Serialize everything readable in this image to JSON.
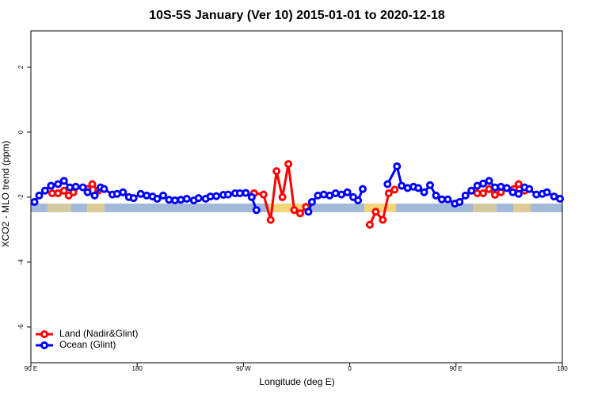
{
  "chart_data": {
    "type": "line",
    "title": "10S-5S January (Ver 10)   2015-01-01 to 2020-12-18",
    "xlabel": "Longitude (deg E)",
    "ylabel": "XCO2 - MLO trend (ppm)",
    "xlim": [
      90,
      540
    ],
    "xticks": [
      {
        "value": 90,
        "label": "90 E"
      },
      180,
      {
        "value": 270,
        "label": "90 W"
      },
      {
        "value": 360,
        "label": "0"
      },
      {
        "value": 450,
        "label": "90 E"
      },
      {
        "value": 540,
        "label": "180"
      }
    ],
    "ylim": [
      -7.1,
      3.12
    ],
    "yticks": [
      2,
      0,
      -2,
      -4,
      -6
    ],
    "legend": "bottom-left",
    "series": [
      {
        "name": "Land (Nadir&Glint)",
        "color": "#ff0000",
        "x": [
          108,
          113,
          118,
          122,
          126,
          null,
          138,
          142,
          147,
          null,
          279,
          287,
          293,
          298,
          303,
          308,
          313,
          318,
          323,
          null,
          377,
          382,
          388,
          393,
          398,
          null,
          468,
          473,
          478,
          483,
          488,
          null,
          499,
          503,
          508
        ],
        "values": [
          -1.88,
          -1.88,
          -1.8,
          -1.95,
          -1.85,
          null,
          -1.75,
          -1.6,
          -1.8,
          null,
          -1.88,
          -1.92,
          -2.7,
          -1.2,
          -2.0,
          -0.98,
          -2.4,
          -2.5,
          -2.3,
          null,
          -2.85,
          -2.45,
          -2.7,
          -1.88,
          -1.77,
          null,
          -1.88,
          -1.88,
          -1.75,
          -1.93,
          -1.85,
          null,
          -1.75,
          -1.6,
          -1.8
        ]
      },
      {
        "name": "Ocean (Glint)",
        "color": "#0000ff",
        "x": [
          93,
          97,
          102,
          107,
          113,
          118,
          123,
          128,
          134,
          138,
          144,
          149,
          152,
          159,
          163,
          168,
          173,
          177,
          183,
          188,
          193,
          197,
          202,
          207,
          212,
          217,
          222,
          228,
          232,
          238,
          242,
          247,
          253,
          257,
          263,
          267,
          272,
          277,
          281,
          null,
          325,
          328,
          333,
          338,
          343,
          348,
          353,
          358,
          363,
          367,
          371,
          null,
          392,
          400,
          404,
          409,
          414,
          418,
          423,
          428,
          433,
          438,
          443,
          449,
          453,
          458,
          463,
          468,
          473,
          478,
          483,
          488,
          493,
          498,
          503,
          508,
          512,
          518,
          523,
          527,
          533,
          538
        ],
        "values": [
          -2.15,
          -1.95,
          -1.8,
          -1.65,
          -1.6,
          -1.5,
          -1.7,
          -1.68,
          -1.7,
          -1.85,
          -1.95,
          -1.7,
          -1.75,
          -1.92,
          -1.9,
          -1.85,
          -2.0,
          -2.03,
          -1.9,
          -1.95,
          -1.98,
          -2.05,
          -1.95,
          -2.08,
          -2.1,
          -2.08,
          -2.05,
          -2.1,
          -2.03,
          -2.05,
          -1.98,
          -1.97,
          -1.93,
          -1.92,
          -1.88,
          -1.88,
          -1.87,
          -2.0,
          -2.4,
          null,
          -2.45,
          -2.15,
          -1.95,
          -1.92,
          -1.95,
          -1.88,
          -1.92,
          -1.85,
          -2.0,
          -2.1,
          -1.75,
          null,
          -1.6,
          -1.05,
          -1.65,
          -1.72,
          -1.68,
          -1.72,
          -1.85,
          -1.63,
          -1.95,
          -2.07,
          -2.07,
          -2.2,
          -2.15,
          -1.95,
          -1.8,
          -1.65,
          -1.58,
          -1.5,
          -1.7,
          -1.68,
          -1.72,
          -1.85,
          -1.9,
          -1.7,
          -1.75,
          -1.92,
          -1.9,
          -1.85,
          -1.98,
          -2.05
        ]
      }
    ]
  }
}
